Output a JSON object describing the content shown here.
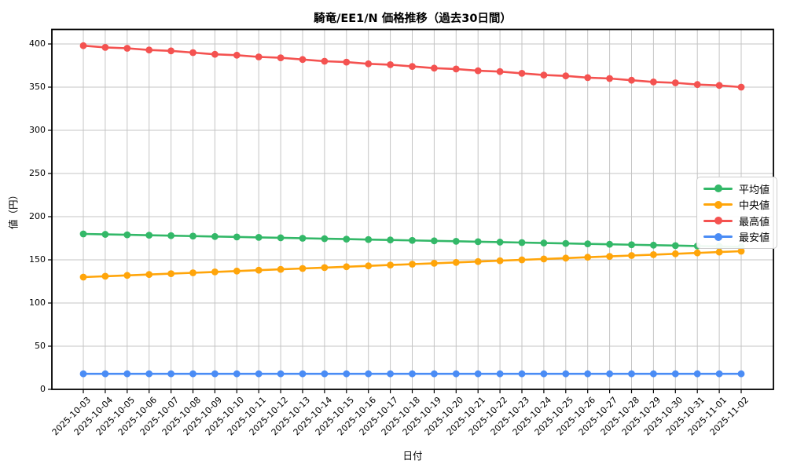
{
  "chart_data": {
    "type": "line",
    "title": "騎竜/EE1/N 価格推移（過去30日間）",
    "xlabel": "日付",
    "ylabel": "値（円）",
    "ylim": [
      0,
      400
    ],
    "yticks": [
      0,
      50,
      100,
      150,
      200,
      250,
      300,
      350,
      400
    ],
    "grid": true,
    "legend_position": "center-right",
    "categories": [
      "2025-10-03",
      "2025-10-04",
      "2025-10-05",
      "2025-10-06",
      "2025-10-07",
      "2025-10-08",
      "2025-10-09",
      "2025-10-10",
      "2025-10-11",
      "2025-10-12",
      "2025-10-13",
      "2025-10-14",
      "2025-10-15",
      "2025-10-16",
      "2025-10-17",
      "2025-10-18",
      "2025-10-19",
      "2025-10-20",
      "2025-10-21",
      "2025-10-22",
      "2025-10-23",
      "2025-10-24",
      "2025-10-25",
      "2025-10-26",
      "2025-10-27",
      "2025-10-28",
      "2025-10-29",
      "2025-10-30",
      "2025-10-31",
      "2025-11-01",
      "2025-11-02"
    ],
    "series": [
      {
        "key": "average",
        "name": "平均値",
        "color": "#33b868",
        "values": [
          180,
          179.5,
          179,
          178.5,
          178,
          177.5,
          177,
          176.5,
          176,
          175.5,
          175,
          174.5,
          174,
          173.5,
          173,
          172.5,
          172,
          171.5,
          171,
          170.5,
          170,
          169.5,
          169,
          168.5,
          168,
          167.5,
          167,
          166.5,
          166,
          165.5,
          165
        ]
      },
      {
        "key": "median",
        "name": "中央値",
        "color": "#ffa50a",
        "values": [
          130,
          131,
          132,
          133,
          134,
          135,
          136,
          137,
          138,
          139,
          140,
          141,
          142,
          143,
          144,
          145,
          146,
          147,
          148,
          149,
          150,
          151,
          152,
          153,
          154,
          155,
          156,
          157,
          158,
          159,
          160
        ]
      },
      {
        "key": "highest",
        "name": "最高値",
        "color": "#f45250",
        "values": [
          398,
          396,
          395,
          393,
          392,
          390,
          388,
          387,
          385,
          384,
          382,
          380,
          379,
          377,
          376,
          374,
          372,
          371,
          369,
          368,
          366,
          364,
          363,
          361,
          360,
          358,
          356,
          355,
          353,
          352,
          350
        ]
      },
      {
        "key": "lowest",
        "name": "最安値",
        "color": "#4a8cf5",
        "values": [
          18,
          18,
          18,
          18,
          18,
          18,
          18,
          18,
          18,
          18,
          18,
          18,
          18,
          18,
          18,
          18,
          18,
          18,
          18,
          18,
          18,
          18,
          18,
          18,
          18,
          18,
          18,
          18,
          18,
          18,
          18
        ]
      }
    ]
  }
}
